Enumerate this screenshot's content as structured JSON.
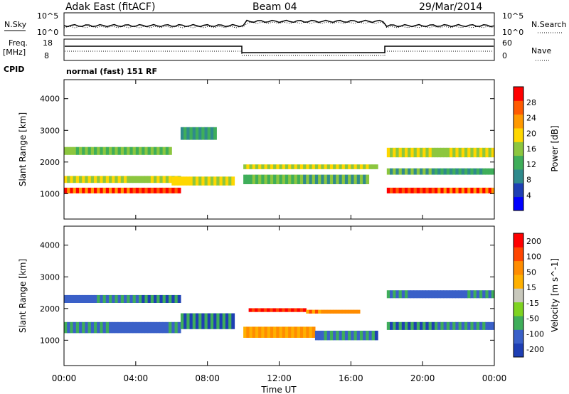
{
  "header": {
    "station": "Adak East (fitACF)",
    "beam": "Beam 04",
    "date": "29/Mar/2014"
  },
  "strip_labels": {
    "nsky": "N.Sky",
    "nsearch": "N.Search",
    "freq_line1": "Freq.",
    "freq_line2": "[MHz]",
    "cpid": "CPID",
    "nave": "Nave",
    "noise_tick_hi": "10^5",
    "noise_tick_lo": "10^0",
    "freq_tick_hi": "18",
    "freq_tick_lo": "8",
    "nave_tick_hi": "60",
    "nave_tick_lo": "0",
    "cpid_text": "normal (fast) 151 RF"
  },
  "chart_data": [
    {
      "type": "heatmap",
      "panel": "power",
      "ylabel": "Slant Range [km]",
      "yticks": [
        1000,
        2000,
        3000,
        4000
      ],
      "ylim": [
        200,
        4600
      ],
      "colorbar": {
        "label": "Power [dB]",
        "ticks": [
          4,
          8,
          12,
          16,
          20,
          24,
          28
        ],
        "range": [
          0,
          32
        ],
        "colors": [
          "#0000ff",
          "#1e3fb4",
          "#2f8a8c",
          "#3fae5a",
          "#8cc63f",
          "#ffd700",
          "#ff9900",
          "#ff5a00",
          "#ff0000"
        ]
      },
      "bands": [
        {
          "t0": 0.0,
          "t1": 6.0,
          "r": 2350,
          "w": 250,
          "level": 0.45
        },
        {
          "t0": 0.0,
          "t1": 6.5,
          "r": 1450,
          "w": 220,
          "level": 0.55
        },
        {
          "t0": 0.0,
          "t1": 6.5,
          "r": 1100,
          "w": 180,
          "level": 0.9
        },
        {
          "t0": 6.0,
          "t1": 9.5,
          "r": 1400,
          "w": 280,
          "level": 0.6
        },
        {
          "t0": 6.5,
          "t1": 8.5,
          "r": 2900,
          "w": 400,
          "level": 0.3
        },
        {
          "t0": 10.0,
          "t1": 17.5,
          "r": 1850,
          "w": 150,
          "level": 0.55
        },
        {
          "t0": 10.0,
          "t1": 17.0,
          "r": 1450,
          "w": 300,
          "level": 0.4
        },
        {
          "t0": 18.0,
          "t1": 24.0,
          "r": 2300,
          "w": 300,
          "level": 0.55
        },
        {
          "t0": 18.0,
          "t1": 24.0,
          "r": 1700,
          "w": 200,
          "level": 0.35
        },
        {
          "t0": 18.0,
          "t1": 24.0,
          "r": 1100,
          "w": 180,
          "level": 0.9
        }
      ]
    },
    {
      "type": "heatmap",
      "panel": "velocity",
      "ylabel": "Slant Range [km]",
      "xlabel": "Time UT",
      "xticks": [
        "00:00",
        "04:00",
        "08:00",
        "12:00",
        "16:00",
        "20:00",
        "00:00"
      ],
      "xlim": [
        0,
        24
      ],
      "yticks": [
        1000,
        2000,
        3000,
        4000
      ],
      "ylim": [
        200,
        4600
      ],
      "colorbar": {
        "label": "Velocity [m s^-1]",
        "ticks": [
          "200",
          "100",
          "50",
          "15",
          "-15",
          "-50",
          "-100",
          "-200"
        ],
        "colors": [
          "#1e3fb4",
          "#3a60c8",
          "#3fae5a",
          "#7ed321",
          "#c8c8bc",
          "#ffb000",
          "#ff8c00",
          "#ff4500",
          "#ff0000"
        ]
      },
      "bands": [
        {
          "t0": 0.0,
          "t1": 6.5,
          "r": 2300,
          "w": 250,
          "level": 0.15
        },
        {
          "t0": 0.0,
          "t1": 6.5,
          "r": 1400,
          "w": 350,
          "level": 0.15
        },
        {
          "t0": 6.5,
          "t1": 9.5,
          "r": 1600,
          "w": 500,
          "level": 0.15
        },
        {
          "t0": 10.3,
          "t1": 13.5,
          "r": 1950,
          "w": 120,
          "level": 0.95
        },
        {
          "t0": 13.5,
          "t1": 16.5,
          "r": 1900,
          "w": 120,
          "level": 0.75
        },
        {
          "t0": 10.0,
          "t1": 14.0,
          "r": 1250,
          "w": 350,
          "level": 0.7
        },
        {
          "t0": 14.0,
          "t1": 17.5,
          "r": 1150,
          "w": 300,
          "level": 0.15
        },
        {
          "t0": 18.0,
          "t1": 24.0,
          "r": 2450,
          "w": 250,
          "level": 0.15
        },
        {
          "t0": 18.0,
          "t1": 24.0,
          "r": 1450,
          "w": 250,
          "level": 0.15
        }
      ]
    }
  ]
}
